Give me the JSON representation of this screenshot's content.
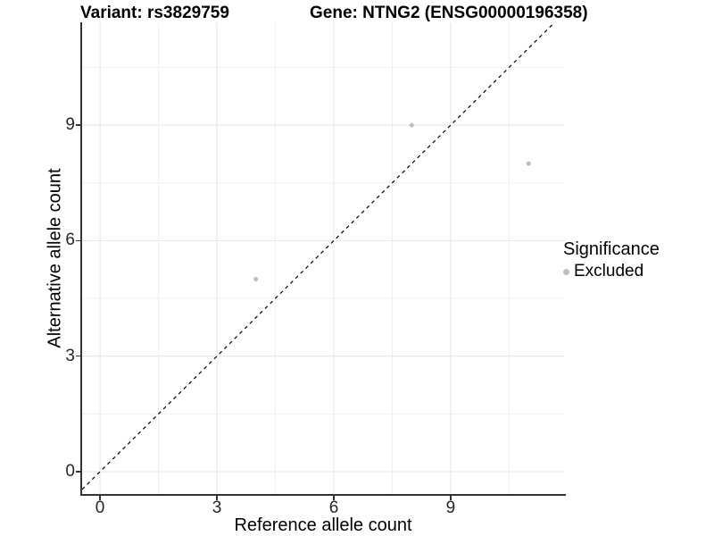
{
  "titles": {
    "variant": "Variant: rs3829759",
    "gene": "Gene: NTNG2 (ENSG00000196358)"
  },
  "axes": {
    "x_label": "Reference allele count",
    "y_label": "Alternative allele count"
  },
  "legend": {
    "title": "Significance",
    "items": [
      {
        "label": "Excluded",
        "color": "#bebebe"
      }
    ]
  },
  "chart_data": {
    "type": "scatter",
    "title": "Variant: rs3829759  Gene: NTNG2 (ENSG00000196358)",
    "xlabel": "Reference allele count",
    "ylabel": "Alternative allele count",
    "series": [
      {
        "name": "Excluded",
        "color": "#bebebe",
        "points": [
          [
            4,
            5
          ],
          [
            8,
            9
          ],
          [
            11,
            8
          ]
        ]
      }
    ],
    "x_ticks": [
      0,
      3,
      6,
      9
    ],
    "y_ticks": [
      0,
      3,
      6,
      9
    ],
    "x_minor_ticks": [
      1.5,
      4.5,
      7.5,
      10.5
    ],
    "y_minor_ticks": [
      1.5,
      4.5,
      7.5,
      10.5
    ],
    "xlim": [
      -0.46,
      11.91
    ],
    "ylim": [
      -0.58,
      11.67
    ],
    "identity_line": {
      "style": "dashed",
      "color": "#000000",
      "slope": 1,
      "intercept": 0
    },
    "grid": {
      "major": true,
      "minor": true
    },
    "legend_position": "right",
    "legend_title": "Significance",
    "point_radius_px": 2.5,
    "colors": {
      "major_grid": "#e4e4e4",
      "minor_grid": "#f0f0f0",
      "axis_line": "#333333",
      "point": "#bebebe",
      "background": "#ffffff"
    }
  }
}
